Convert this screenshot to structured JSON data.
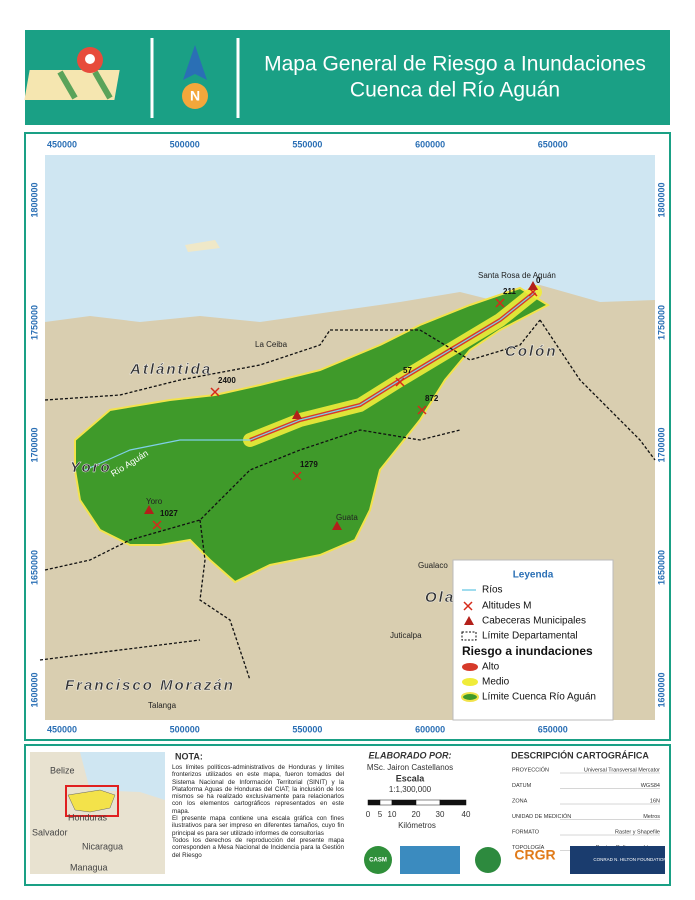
{
  "header": {
    "title": "Mapa General de Riesgo a Inundaciones",
    "subtitle": "Cuenca del Río Aguán"
  },
  "map": {
    "x_coords": [
      "450000",
      "500000",
      "550000",
      "600000",
      "650000"
    ],
    "y_coords": [
      "1800000",
      "1750000",
      "1700000",
      "1650000",
      "1600000"
    ],
    "departments": [
      "Atlántida",
      "Colón",
      "Yoro",
      "Ola",
      "Francisco Morazán"
    ],
    "places": [
      "La Ceiba",
      "Santa Rosa de Aguán",
      "Gualaco",
      "Juticalpa",
      "Talanga",
      "Guata",
      "Yoro"
    ],
    "river_label": "Río Aguán",
    "altitudes": [
      "0",
      "211",
      "57",
      "872",
      "2400",
      "1279",
      "1027"
    ]
  },
  "legend": {
    "title": "Leyenda",
    "items": [
      "Ríos",
      "Altitudes M",
      "Cabeceras Municipales",
      "Límite Departamental"
    ],
    "risk_title": "Riesgo a inundaciones",
    "risk_items": [
      "Alto",
      "Medio",
      "Límite Cuenca Río Aguán"
    ]
  },
  "inset": {
    "labels": [
      "Belize",
      "Honduras",
      "Salvador",
      "Nicaragua",
      "Managua"
    ]
  },
  "note": {
    "title": "NOTA:",
    "paragraphs": [
      "Los límites políticos-administrativos de Honduras y límites fronterizos utilizados en este mapa, fueron tomados del Sistema Nacional de Información Territorial (SINIT) y la Plataforma Aguas de Honduras del CIAT; la inclusión de los mismos se ha realizado exclusivamente para relacionarlos con los elementos cartográficos representados en este mapa.",
      "El presente mapa contiene una escala gráfica con fines ilustrativos para ser impreso en diferentes tamaños, cuyo fin principal es para ser utilizado informes de consultorías",
      "Todos los derechos de reproducción del presente mapa corresponden a Mesa Nacional de Incidencia para la Gestión del Riesgo"
    ]
  },
  "credits": {
    "title": "ELABORADO POR:",
    "author": "MSc. Jairon Castellanos",
    "scale_title": "Escala",
    "scale": "1:1,300,000",
    "scale_ticks": [
      "0",
      "5",
      "10",
      "20",
      "30",
      "40"
    ],
    "scale_unit": "Kilómetros"
  },
  "description": {
    "title": "DESCRIPCIÓN CARTOGRÁFICA",
    "rows": [
      [
        "PROYECCIÓN",
        "Universal Transversal Mercator"
      ],
      [
        "DATUM",
        "WGS84"
      ],
      [
        "ZONA",
        "16N"
      ],
      [
        "UNIDAD DE MEDICIÓN",
        "Metros"
      ],
      [
        "FORMATO",
        "Raster y Shapefile"
      ],
      [
        "TOPOLOGÍA",
        "Puntos, Polígonos, Líneas"
      ]
    ]
  },
  "logos": [
    "CASM",
    "CRGR",
    "CONRAD N. HILTON FOUNDATION"
  ]
}
